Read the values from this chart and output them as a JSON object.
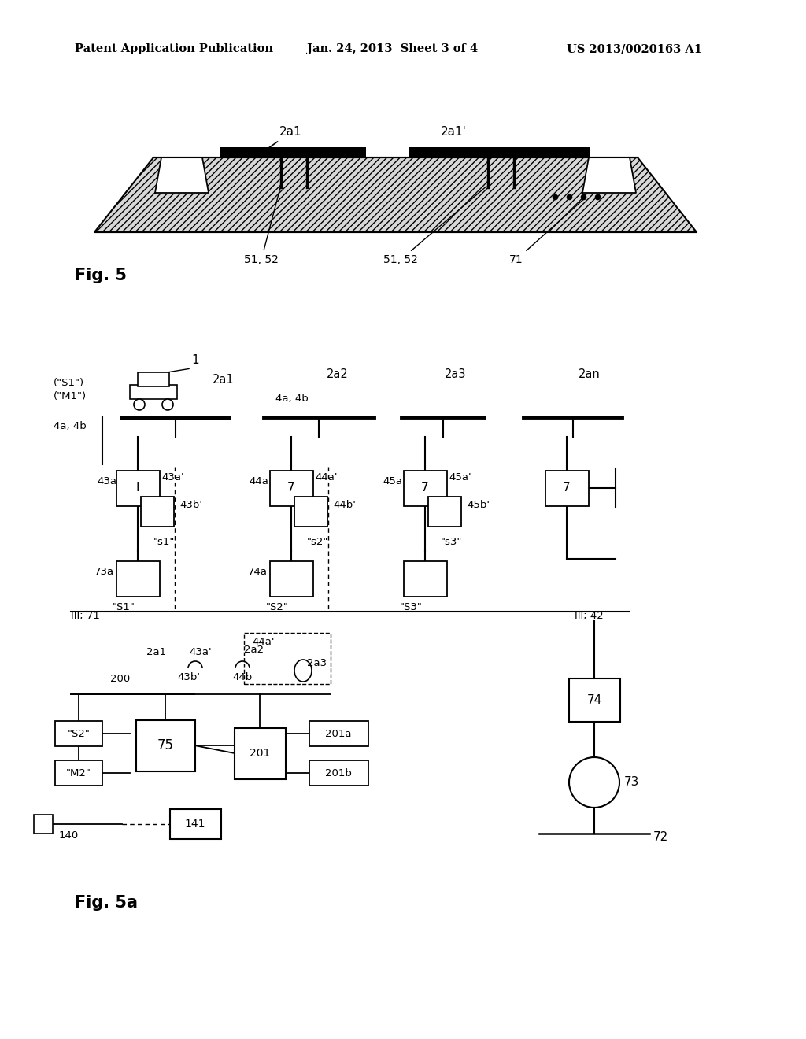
{
  "bg_color": "#ffffff",
  "header_left": "Patent Application Publication",
  "header_mid": "Jan. 24, 2013  Sheet 3 of 4",
  "header_right": "US 2013/0020163 A1"
}
